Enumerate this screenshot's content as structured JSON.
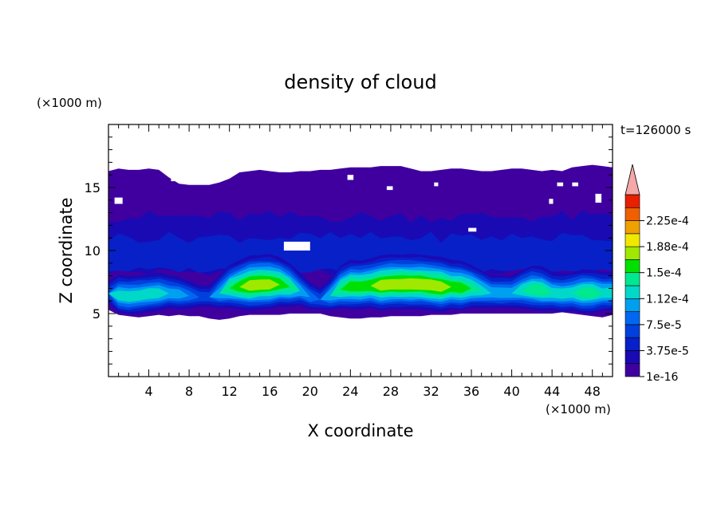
{
  "chart_data": {
    "type": "heatmap",
    "title": "density of cloud",
    "xlabel": "X coordinate",
    "ylabel": "Z coordinate",
    "x_unit": "(×1000 m)",
    "y_unit": "(×1000 m)",
    "time_label": "t=126000 s",
    "xlim": [
      0,
      50
    ],
    "ylim": [
      0,
      20
    ],
    "x_ticks": [
      4,
      8,
      12,
      16,
      20,
      24,
      28,
      32,
      36,
      40,
      44,
      48
    ],
    "y_ticks": [
      5,
      10,
      15
    ],
    "colorbar": {
      "levels": [
        1e-16,
        1.88e-05,
        3.75e-05,
        5.63e-05,
        7.5e-05,
        9.38e-05,
        0.000112,
        0.000131,
        0.00015,
        0.000169,
        0.000188,
        0.000206,
        0.000225,
        0.000244
      ],
      "labels": [
        "1e-16",
        "3.75e-5",
        "7.5e-5",
        "1.12e-4",
        "1.5e-4",
        "1.88e-4",
        "2.25e-4"
      ],
      "label_levels": [
        1e-16,
        3.75e-05,
        7.5e-05,
        0.000112,
        0.00015,
        0.000188,
        0.000225
      ],
      "colors": [
        "#4000a0",
        "#1a0ab4",
        "#0820c8",
        "#0040dc",
        "#0068f0",
        "#00a0f0",
        "#00d8c8",
        "#00e890",
        "#00e000",
        "#a0e800",
        "#f0e800",
        "#f0a000",
        "#f06000",
        "#e82000"
      ],
      "overflow_color": "#f4a8a8"
    },
    "field": {
      "description_levels_are_indices_into_colorbar": true,
      "x_points": [
        0,
        1,
        2,
        3,
        4,
        5,
        6,
        7,
        8,
        9,
        10,
        11,
        12,
        13,
        14,
        15,
        16,
        17,
        18,
        19,
        20,
        21,
        22,
        23,
        24,
        25,
        26,
        27,
        28,
        29,
        30,
        31,
        32,
        33,
        34,
        35,
        36,
        37,
        38,
        39,
        40,
        41,
        42,
        43,
        44,
        45,
        46,
        47,
        48,
        49,
        50
      ],
      "cloud_base_z": [
        5.3,
        4.9,
        4.8,
        4.7,
        4.8,
        4.9,
        4.8,
        4.9,
        4.8,
        4.8,
        4.6,
        4.5,
        4.6,
        4.8,
        4.9,
        4.9,
        4.9,
        4.9,
        5.0,
        5.0,
        5.0,
        5.0,
        4.8,
        4.7,
        4.6,
        4.6,
        4.7,
        4.7,
        4.8,
        4.8,
        4.8,
        4.8,
        4.9,
        4.9,
        4.9,
        5.0,
        5.0,
        5.0,
        5.0,
        5.0,
        5.0,
        5.0,
        5.0,
        5.0,
        5.0,
        5.1,
        5.0,
        4.9,
        4.8,
        4.7,
        4.9
      ],
      "cloud_top_z": [
        16.3,
        16.5,
        16.4,
        16.4,
        16.5,
        16.4,
        15.8,
        15.3,
        15.2,
        15.2,
        15.2,
        15.4,
        15.7,
        16.2,
        16.3,
        16.4,
        16.3,
        16.2,
        16.2,
        16.3,
        16.3,
        16.4,
        16.4,
        16.5,
        16.6,
        16.6,
        16.6,
        16.7,
        16.7,
        16.7,
        16.5,
        16.3,
        16.3,
        16.4,
        16.5,
        16.5,
        16.4,
        16.3,
        16.3,
        16.4,
        16.5,
        16.5,
        16.4,
        16.3,
        16.4,
        16.3,
        16.6,
        16.7,
        16.8,
        16.7,
        16.6
      ],
      "core_center_z": [
        6.6,
        6.4,
        6.3,
        6.4,
        6.5,
        6.6,
        6.6,
        6.5,
        6.4,
        6.3,
        6.3,
        6.6,
        7.0,
        7.1,
        7.2,
        7.3,
        7.3,
        7.3,
        7.1,
        6.8,
        6.3,
        6.1,
        6.4,
        6.9,
        7.1,
        7.1,
        7.2,
        7.2,
        7.3,
        7.3,
        7.3,
        7.3,
        7.2,
        7.1,
        7.1,
        7.0,
        7.0,
        6.8,
        6.6,
        6.6,
        6.6,
        6.8,
        6.9,
        6.8,
        6.6,
        6.5,
        6.6,
        6.6,
        6.6,
        6.6,
        6.6
      ],
      "core_peak_level": [
        3,
        6,
        6,
        6,
        6,
        6,
        5,
        5,
        4,
        3,
        3,
        5,
        7,
        8,
        9,
        9,
        9,
        8,
        7,
        5,
        4,
        3,
        5,
        7,
        8,
        8,
        8,
        9,
        9,
        9,
        9,
        9,
        9,
        9,
        8,
        8,
        7,
        6,
        5,
        5,
        5,
        6,
        7,
        7,
        6,
        6,
        6,
        7,
        7,
        6,
        6
      ],
      "gaps": [
        {
          "x": 0.6,
          "z": 13.7,
          "w": 0.8,
          "h": 0.5
        },
        {
          "x": 6.2,
          "z": 15.5,
          "w": 0.6,
          "h": 0.4
        },
        {
          "x": 17.4,
          "z": 10.0,
          "w": 2.6,
          "h": 0.7
        },
        {
          "x": 23.7,
          "z": 15.6,
          "w": 0.6,
          "h": 0.4
        },
        {
          "x": 27.6,
          "z": 14.8,
          "w": 0.6,
          "h": 0.3
        },
        {
          "x": 32.3,
          "z": 15.1,
          "w": 0.4,
          "h": 0.3
        },
        {
          "x": 35.7,
          "z": 11.5,
          "w": 0.8,
          "h": 0.3
        },
        {
          "x": 44.5,
          "z": 15.1,
          "w": 0.6,
          "h": 0.3
        },
        {
          "x": 46.0,
          "z": 15.1,
          "w": 0.6,
          "h": 0.3
        },
        {
          "x": 48.3,
          "z": 13.8,
          "w": 0.6,
          "h": 0.7
        },
        {
          "x": 43.7,
          "z": 13.7,
          "w": 0.4,
          "h": 0.4
        },
        {
          "x": 10.5,
          "z": 16.0,
          "w": 0.8,
          "h": 0.4
        }
      ]
    }
  }
}
